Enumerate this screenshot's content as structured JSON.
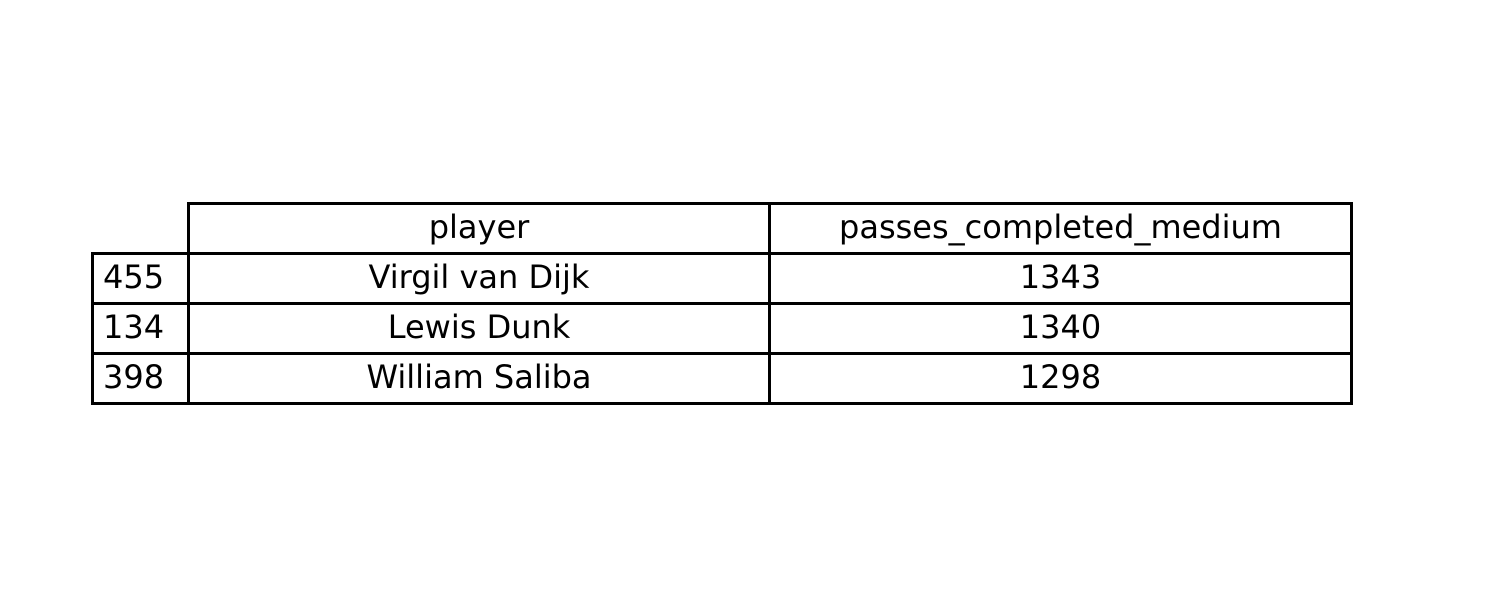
{
  "chart_data": {
    "type": "table",
    "columns": [
      "player",
      "passes_completed_medium"
    ],
    "rows": [
      {
        "index": "455",
        "player": "Virgil van Dijk",
        "passes_completed_medium": "1343"
      },
      {
        "index": "134",
        "player": "Lewis Dunk",
        "passes_completed_medium": "1340"
      },
      {
        "index": "398",
        "player": "William Saliba",
        "passes_completed_medium": "1298"
      }
    ]
  },
  "colors": {
    "border": "#000000",
    "background": "#ffffff",
    "text": "#000000"
  }
}
